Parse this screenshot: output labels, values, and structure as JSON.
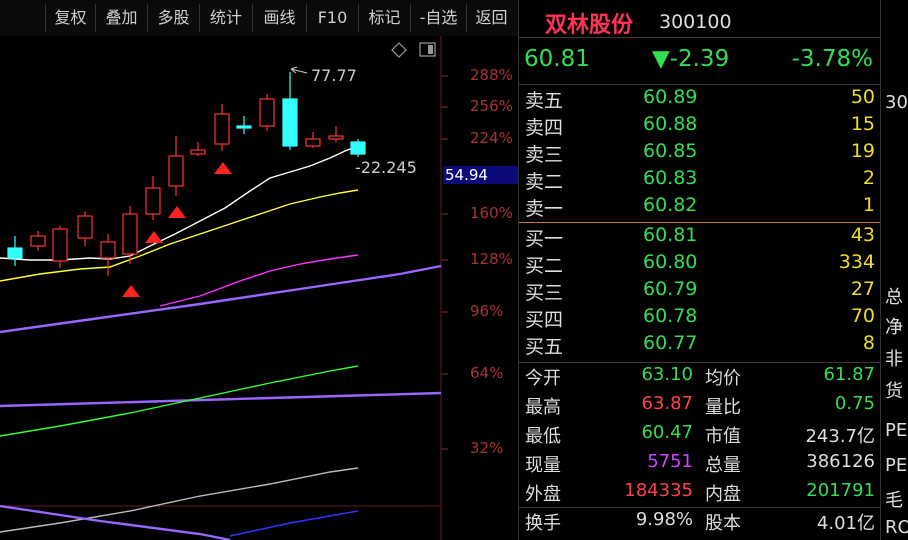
{
  "toolbar": {
    "buttons": [
      "复权",
      "叠加",
      "多股",
      "统计",
      "画线",
      "F10",
      "标记",
      "-自选",
      "返回"
    ]
  },
  "chart": {
    "high_marker": "77.77",
    "ma_label": "-22.245",
    "current_price_tag": "54.94",
    "axis_labels": [
      "288%",
      "256%",
      "224%",
      "160%",
      "128%",
      "96%",
      "64%",
      "32%"
    ],
    "colors": {
      "up": "#ff3333",
      "down": "#33ffff",
      "ma_white": "#ffffff",
      "ma_yellow": "#ffff33",
      "ma_magenta": "#ff33ff",
      "ma_purple": "#9966ff",
      "ma_green": "#33ff33",
      "ma_gray": "#bbbbbb",
      "ma_blue": "#3333ff",
      "signal": "#ff2222"
    }
  },
  "quote": {
    "name": "双林股份",
    "code": "300100",
    "price": "60.81",
    "change": "▼-2.39",
    "change_pct": "-3.78%",
    "asks": [
      {
        "label": "卖五",
        "price": "60.89",
        "vol": "50"
      },
      {
        "label": "卖四",
        "price": "60.88",
        "vol": "15"
      },
      {
        "label": "卖三",
        "price": "60.85",
        "vol": "19"
      },
      {
        "label": "卖二",
        "price": "60.83",
        "vol": "2"
      },
      {
        "label": "卖一",
        "price": "60.82",
        "vol": "1"
      }
    ],
    "bids": [
      {
        "label": "买一",
        "price": "60.81",
        "vol": "43"
      },
      {
        "label": "买二",
        "price": "60.80",
        "vol": "334"
      },
      {
        "label": "买三",
        "price": "60.79",
        "vol": "27"
      },
      {
        "label": "买四",
        "price": "60.78",
        "vol": "70"
      },
      {
        "label": "买五",
        "price": "60.77",
        "vol": "8"
      }
    ],
    "stats": [
      {
        "l1": "今开",
        "v1": "63.10",
        "c1": "#33dd55",
        "l2": "均价",
        "v2": "61.87",
        "c2": "#33dd55"
      },
      {
        "l1": "最高",
        "v1": "63.87",
        "c1": "#ff4444",
        "l2": "量比",
        "v2": "0.75",
        "c2": "#33dd55"
      },
      {
        "l1": "最低",
        "v1": "60.47",
        "c1": "#33dd55",
        "l2": "市值",
        "v2": "243.7亿",
        "c2": "#dddddd"
      },
      {
        "l1": "现量",
        "v1": "5751",
        "c1": "#cc44ff",
        "l2": "总量",
        "v2": "386126",
        "c2": "#dddddd"
      },
      {
        "l1": "外盘",
        "v1": "184335",
        "c1": "#ff4444",
        "l2": "内盘",
        "v2": "201791",
        "c2": "#33dd55"
      },
      {
        "l1": "换手",
        "v1": "9.98%",
        "c1": "#dddddd",
        "l2": "股本",
        "v2": "4.01亿",
        "c2": "#dddddd"
      }
    ]
  },
  "extra_column": [
    "30",
    "总",
    "净",
    "非",
    "货",
    "PE",
    "PE",
    "毛",
    "RO"
  ]
}
